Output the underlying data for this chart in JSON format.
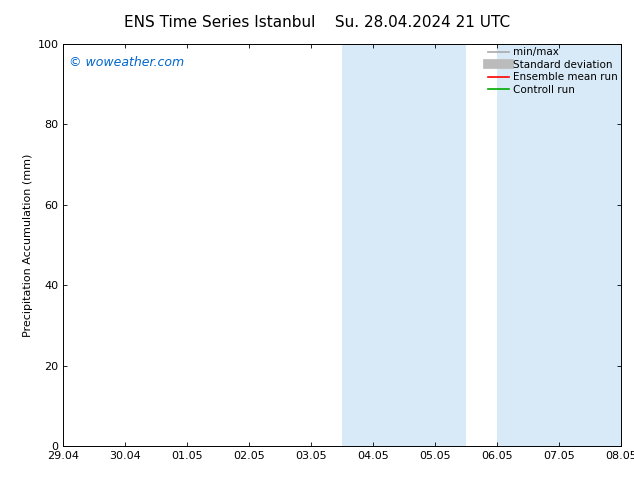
{
  "title": "ENS Time Series Istanbul",
  "subtitle": "Su. 28.04.2024 21 UTC",
  "ylabel": "Precipitation Accumulation (mm)",
  "watermark": "© woweather.com",
  "watermark_color": "#0066cc",
  "xlim_dates": [
    "29.04",
    "30.04",
    "01.05",
    "02.05",
    "03.05",
    "04.05",
    "05.05",
    "06.05",
    "07.05",
    "08.05"
  ],
  "ylim": [
    0,
    100
  ],
  "yticks": [
    0,
    20,
    40,
    60,
    80,
    100
  ],
  "background_color": "#ffffff",
  "plot_bg_color": "#ffffff",
  "shaded_regions": [
    {
      "xstart": 4.5,
      "xend": 6.5,
      "color": "#d8eaf8"
    },
    {
      "xstart": 7.0,
      "xend": 9.0,
      "color": "#d8eaf8"
    }
  ],
  "legend_entries": [
    {
      "label": "min/max",
      "color": "#aaaaaa",
      "linewidth": 1.2
    },
    {
      "label": "Standard deviation",
      "color": "#bbbbbb",
      "linewidth": 7
    },
    {
      "label": "Ensemble mean run",
      "color": "#ff0000",
      "linewidth": 1.2
    },
    {
      "label": "Controll run",
      "color": "#00aa00",
      "linewidth": 1.2
    }
  ],
  "title_fontsize": 11,
  "axis_label_fontsize": 8,
  "tick_fontsize": 8,
  "watermark_fontsize": 9,
  "legend_fontsize": 7.5
}
